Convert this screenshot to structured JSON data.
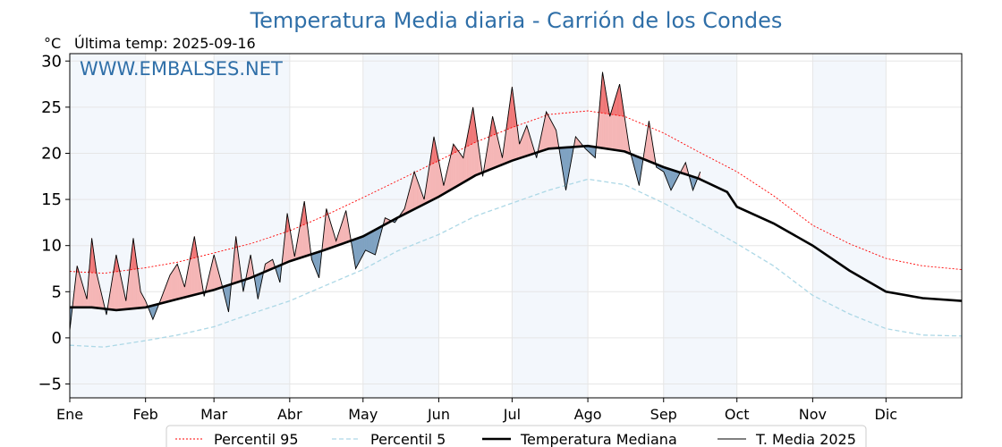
{
  "chart_data": {
    "type": "line",
    "title": "Temperatura Media diaria - Carrión de los Condes",
    "unit": "°C",
    "last_temp_label": "Última temp: 2025-09-16",
    "watermark": "WWW.EMBALSES.NET",
    "ylim": [
      -6.5,
      30.8
    ],
    "yticks": [
      -5,
      0,
      5,
      10,
      15,
      20,
      25,
      30
    ],
    "xlim": [
      1,
      366
    ],
    "month_labels": [
      "Ene",
      "Feb",
      "Mar",
      "Abr",
      "May",
      "Jun",
      "Jul",
      "Ago",
      "Sep",
      "Oct",
      "Nov",
      "Dic"
    ],
    "month_starts": [
      1,
      32,
      60,
      91,
      121,
      152,
      182,
      213,
      244,
      274,
      305,
      335
    ],
    "grid": true,
    "shaded_months": [
      "Ene",
      "Mar",
      "May",
      "Jul",
      "Sep",
      "Nov"
    ],
    "legend_position": "bottom",
    "colors": {
      "p95": "#ff0000",
      "p5": "#add8e6",
      "median": "#000000",
      "year": "#000000",
      "above_median": "#f5b6b6",
      "above_p95": "#f07575",
      "below_median": "#7fa2c2",
      "title": "#2f6fa8",
      "band": "#f3f7fc"
    },
    "series": [
      {
        "name": "Percentil 95",
        "style": "dotted",
        "x": [
          1,
          15,
          32,
          45,
          60,
          75,
          91,
          105,
          121,
          135,
          152,
          167,
          182,
          197,
          213,
          228,
          244,
          258,
          274,
          289,
          305,
          320,
          335,
          350,
          366
        ],
        "y": [
          7.2,
          7.0,
          7.6,
          8.2,
          9.2,
          10.2,
          11.6,
          13.2,
          15.2,
          17.0,
          19.2,
          21.2,
          22.8,
          24.2,
          24.6,
          24.0,
          22.2,
          20.2,
          18.0,
          15.4,
          12.2,
          10.2,
          8.6,
          7.8,
          7.4
        ]
      },
      {
        "name": "Percentil 5",
        "style": "dashed",
        "x": [
          1,
          15,
          32,
          45,
          60,
          75,
          91,
          105,
          121,
          135,
          152,
          167,
          182,
          197,
          213,
          228,
          244,
          258,
          274,
          289,
          305,
          320,
          335,
          350,
          366
        ],
        "y": [
          -0.8,
          -1.0,
          -0.3,
          0.3,
          1.2,
          2.6,
          4.0,
          5.6,
          7.4,
          9.4,
          11.2,
          13.2,
          14.6,
          16.0,
          17.2,
          16.6,
          14.6,
          12.6,
          10.2,
          7.8,
          4.6,
          2.6,
          1.0,
          0.3,
          0.2
        ]
      },
      {
        "name": "Temperatura Mediana",
        "style": "thick",
        "x": [
          1,
          10,
          20,
          32,
          45,
          60,
          75,
          91,
          105,
          121,
          135,
          152,
          167,
          182,
          197,
          213,
          228,
          244,
          258,
          270,
          274,
          289,
          305,
          320,
          335,
          350,
          366
        ],
        "y": [
          3.3,
          3.3,
          3.0,
          3.3,
          4.2,
          5.2,
          6.5,
          8.3,
          9.5,
          11.0,
          13.0,
          15.3,
          17.6,
          19.2,
          20.5,
          20.8,
          20.2,
          18.5,
          17.3,
          15.8,
          14.2,
          12.4,
          10.0,
          7.3,
          5.0,
          4.3,
          4.0
        ]
      },
      {
        "name": "T. Media 2025",
        "style": "thin",
        "x": [
          1,
          4,
          8,
          10,
          12,
          16,
          20,
          24,
          27,
          30,
          32,
          35,
          38,
          42,
          45,
          48,
          52,
          56,
          60,
          63,
          66,
          69,
          72,
          75,
          78,
          81,
          84,
          87,
          90,
          93,
          97,
          100,
          103,
          106,
          110,
          114,
          118,
          122,
          126,
          130,
          134,
          138,
          142,
          146,
          150,
          154,
          158,
          162,
          166,
          170,
          174,
          178,
          182,
          185,
          188,
          192,
          196,
          200,
          204,
          208,
          212,
          216,
          219,
          222,
          226,
          230,
          234,
          238,
          241,
          244,
          247,
          250,
          253,
          256,
          259
        ],
        "y": [
          0.8,
          7.8,
          4.2,
          10.8,
          7.0,
          2.5,
          9.0,
          4.0,
          10.8,
          5.0,
          4.0,
          2.0,
          4.0,
          6.8,
          8.0,
          5.5,
          11.0,
          4.5,
          9.0,
          6.0,
          2.8,
          11.0,
          5.0,
          9.0,
          4.2,
          8.0,
          8.5,
          6.0,
          13.5,
          8.8,
          14.8,
          8.5,
          6.5,
          14.0,
          10.5,
          13.8,
          7.5,
          9.5,
          9.0,
          13.0,
          12.5,
          14.0,
          18.0,
          15.0,
          21.8,
          16.5,
          21.0,
          19.5,
          25.0,
          17.5,
          24.0,
          19.5,
          27.2,
          21.0,
          23.0,
          19.5,
          24.5,
          22.5,
          16.0,
          21.8,
          20.5,
          19.5,
          28.8,
          24.0,
          27.5,
          20.5,
          16.5,
          23.5,
          18.5,
          18.0,
          16.0,
          17.5,
          19.0,
          16.0,
          18.0
        ]
      }
    ]
  },
  "legend": {
    "items": [
      "Percentil 95",
      "Percentil 5",
      "Temperatura Mediana",
      "T. Media 2025"
    ]
  }
}
